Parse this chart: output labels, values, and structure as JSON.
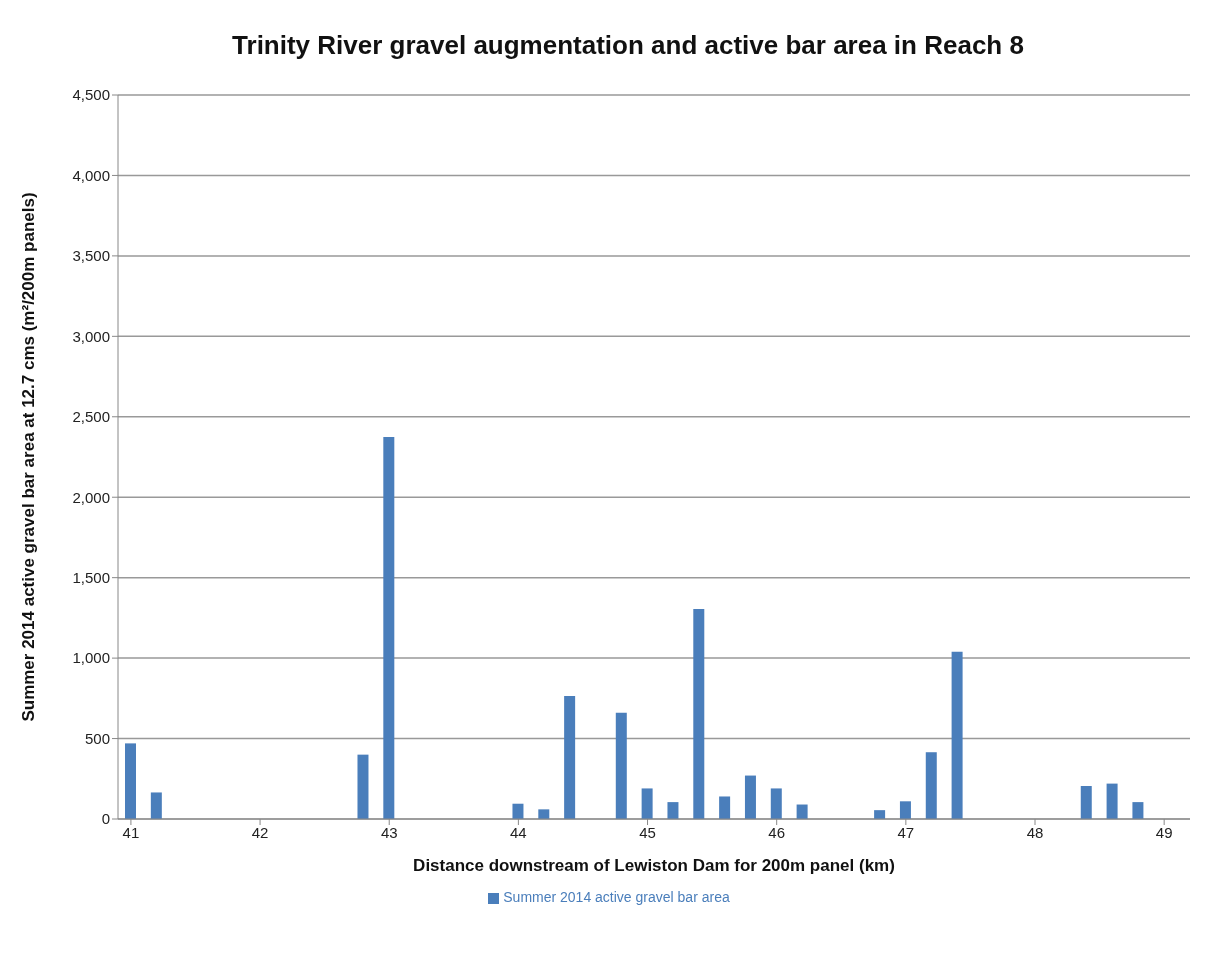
{
  "chart_data": {
    "type": "bar",
    "title": "Trinity River gravel augmentation and active bar area in Reach 8",
    "xlabel": "Distance downstream of Lewiston Dam for 200m panel (km)",
    "ylabel": "Summer 2014 active gravel bar area at 12.7 cms (m²/200m panels)",
    "x": [
      41.0,
      41.2,
      42.8,
      43.0,
      44.0,
      44.2,
      44.4,
      44.8,
      45.0,
      45.2,
      45.4,
      45.6,
      45.8,
      46.0,
      46.2,
      46.8,
      47.0,
      47.2,
      47.4,
      48.4,
      48.6,
      48.8
    ],
    "series": [
      {
        "name": "Summer 2014 active gravel bar area",
        "color": "#4a7ebb",
        "values": [
          470,
          165,
          400,
          2375,
          95,
          60,
          765,
          660,
          190,
          105,
          1305,
          140,
          270,
          190,
          90,
          55,
          110,
          415,
          1040,
          205,
          220,
          105
        ]
      }
    ],
    "xlim": [
      40.9,
      49.2
    ],
    "xticks": [
      41,
      42,
      43,
      44,
      45,
      46,
      47,
      48,
      49
    ],
    "ylim": [
      0,
      4500
    ],
    "yticks": [
      {
        "value": 0,
        "label": "0"
      },
      {
        "value": 500,
        "label": "500"
      },
      {
        "value": 1000,
        "label": "1,000"
      },
      {
        "value": 1500,
        "label": "1,500"
      },
      {
        "value": 2000,
        "label": "2,000"
      },
      {
        "value": 2500,
        "label": "2,500"
      },
      {
        "value": 3000,
        "label": "3,000"
      },
      {
        "value": 3500,
        "label": "3,500"
      },
      {
        "value": 4000,
        "label": "4,000"
      },
      {
        "value": 4500,
        "label": "4,500"
      }
    ],
    "grid": "y",
    "legend": "bottom"
  }
}
